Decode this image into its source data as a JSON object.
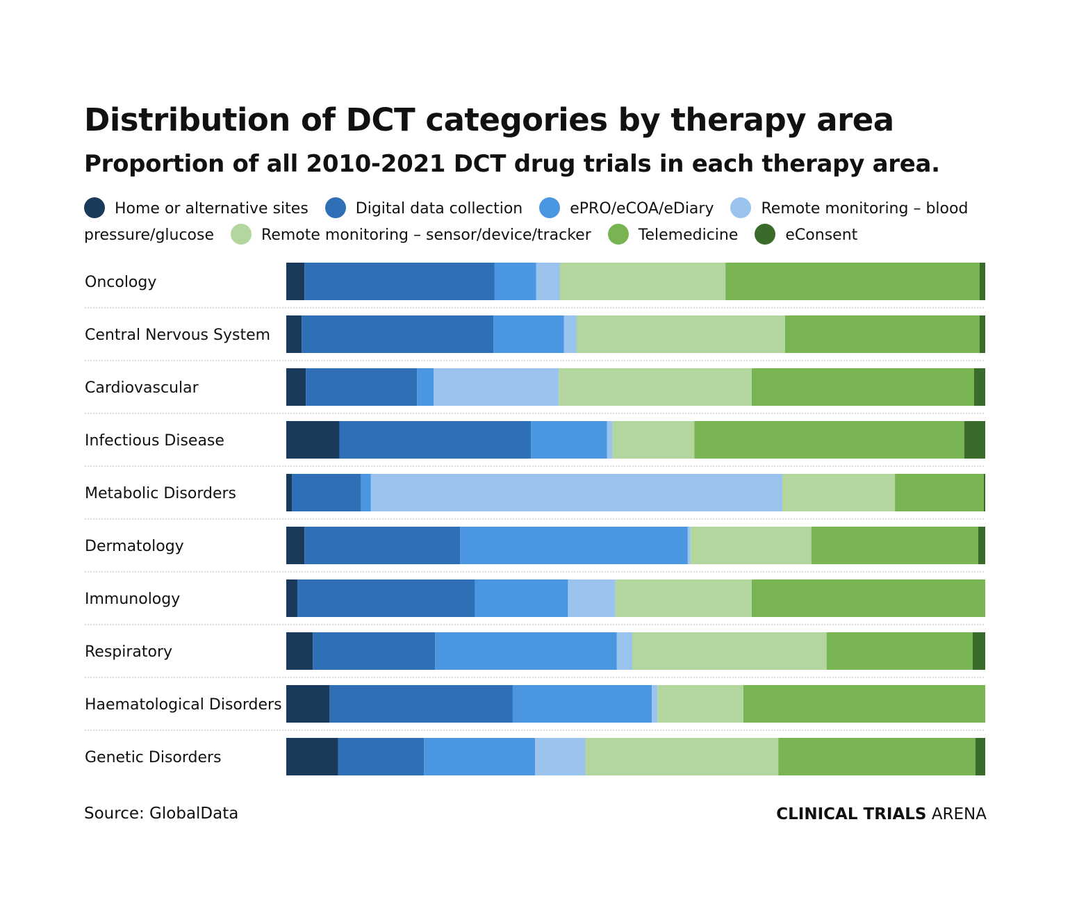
{
  "chart_data": {
    "type": "bar",
    "orientation": "horizontal",
    "stacked": true,
    "normalized": "percent",
    "title": "Distribution of DCT categories by therapy area",
    "subtitle": "Proportion of all 2010-2021 DCT drug trials in each therapy area.",
    "xlim": [
      0,
      100
    ],
    "grid": false,
    "legend_position": "top",
    "categories": [
      "Oncology",
      "Central Nervous System",
      "Cardiovascular",
      "Infectious Disease",
      "Metabolic Disorders",
      "Dermatology",
      "Immunology",
      "Respiratory",
      "Haematological Disorders",
      "Genetic Disorders"
    ],
    "series": [
      {
        "name": "Home or alternative sites",
        "color": "#1a3a5c",
        "values": [
          2.6,
          2.2,
          2.8,
          7.6,
          0.8,
          2.6,
          1.6,
          3.8,
          6.2,
          7.4
        ]
      },
      {
        "name": "Digital data collection",
        "color": "#2e6fb5",
        "values": [
          27.2,
          27.4,
          15.9,
          27.4,
          9.9,
          22.3,
          25.4,
          17.5,
          26.2,
          12.3
        ]
      },
      {
        "name": "ePRO/eCOA/eDiary",
        "color": "#4a96e0",
        "values": [
          6.0,
          10.1,
          2.4,
          10.9,
          1.4,
          32.6,
          13.3,
          26.0,
          19.9,
          15.9
        ]
      },
      {
        "name": "Remote monitoring – blood pressure/glucose",
        "color": "#9ac3ee",
        "values": [
          3.4,
          1.8,
          17.9,
          0.8,
          58.8,
          0.4,
          6.8,
          2.2,
          0.8,
          7.2
        ]
      },
      {
        "name": "Remote monitoring – sensor/device/tracker",
        "color": "#b3d69e",
        "values": [
          23.7,
          29.8,
          27.6,
          11.7,
          16.1,
          17.3,
          19.5,
          27.8,
          12.3,
          27.6
        ]
      },
      {
        "name": "Telemedicine",
        "color": "#79b453",
        "values": [
          36.4,
          27.8,
          31.8,
          38.6,
          12.7,
          23.9,
          33.4,
          20.9,
          34.6,
          28.2
        ]
      },
      {
        "name": "eConsent",
        "color": "#3b6b2a",
        "values": [
          0.8,
          0.8,
          1.6,
          3.0,
          0.2,
          1.0,
          0,
          1.8,
          0,
          1.4
        ]
      }
    ]
  },
  "footer": {
    "source": "Source: GlobalData",
    "brand_bold": "CLINICAL TRIALS",
    "brand_light": "ARENA"
  }
}
